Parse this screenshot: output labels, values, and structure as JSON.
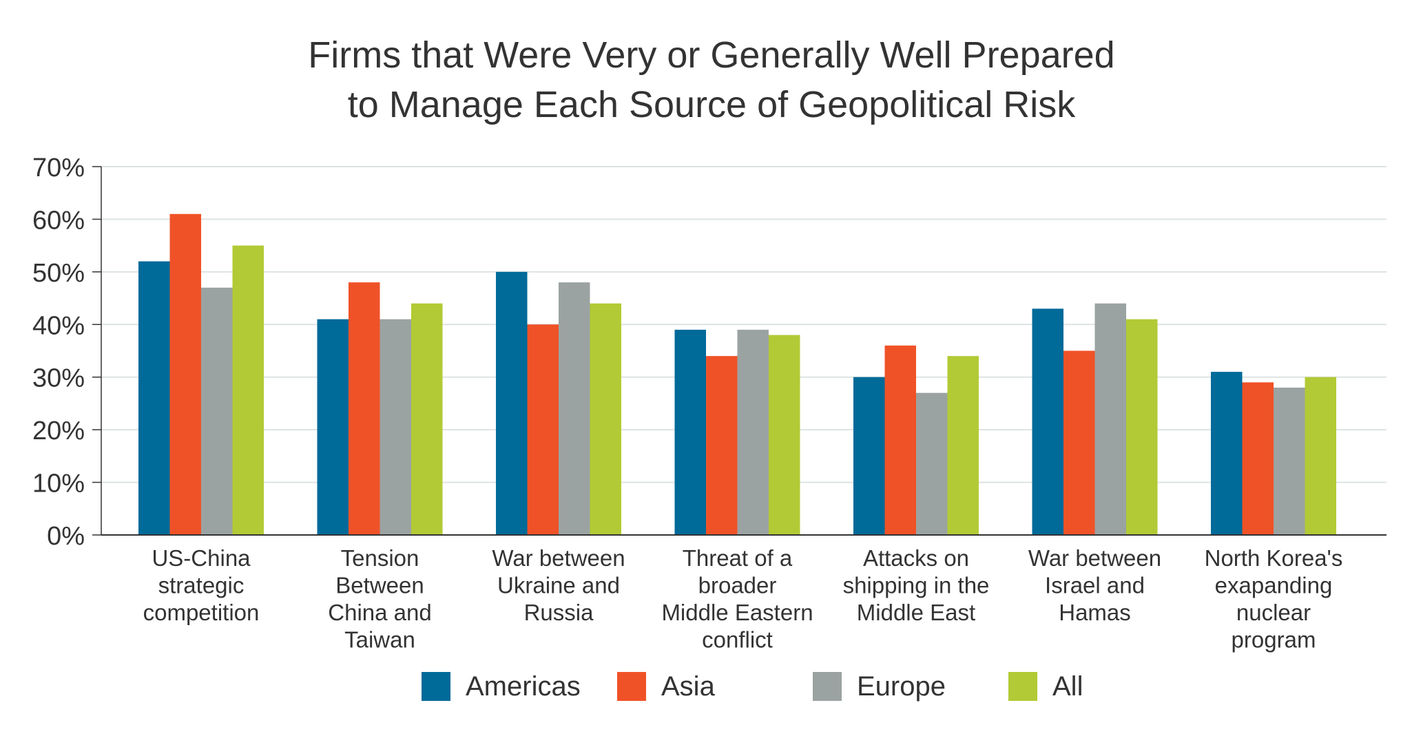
{
  "chart_data": {
    "type": "bar",
    "title": [
      "Firms that Were Very or Generally Well Prepared",
      "to Manage Each Source of Geopolitical Risk"
    ],
    "xlabel": "",
    "ylabel": "",
    "ylim": [
      0,
      70
    ],
    "yticks": [
      "0%",
      "10%",
      "20%",
      "30%",
      "40%",
      "50%",
      "60%",
      "70%"
    ],
    "grid": true,
    "legend_position": "bottom",
    "categories": [
      [
        "US-China",
        "strategic",
        "competition"
      ],
      [
        "Tension",
        "Between",
        "China and",
        "Taiwan"
      ],
      [
        "War between",
        "Ukraine and",
        "Russia"
      ],
      [
        "Threat of a",
        "broader",
        "Middle Eastern",
        "conflict"
      ],
      [
        "Attacks on",
        "shipping in the",
        "Middle East"
      ],
      [
        "War between",
        "Israel and",
        "Hamas"
      ],
      [
        "North Korea's",
        "exapanding",
        "nuclear",
        "program"
      ]
    ],
    "series": [
      {
        "name": "Americas",
        "color": "#006a99",
        "values": [
          52,
          41,
          50,
          39,
          30,
          43,
          31
        ]
      },
      {
        "name": "Asia",
        "color": "#f05228",
        "values": [
          61,
          48,
          40,
          34,
          36,
          35,
          29
        ]
      },
      {
        "name": "Europe",
        "color": "#9ba3a2",
        "values": [
          47,
          41,
          48,
          39,
          27,
          44,
          28
        ]
      },
      {
        "name": "All",
        "color": "#b2ca35",
        "values": [
          55,
          44,
          44,
          38,
          34,
          41,
          30
        ]
      }
    ]
  }
}
